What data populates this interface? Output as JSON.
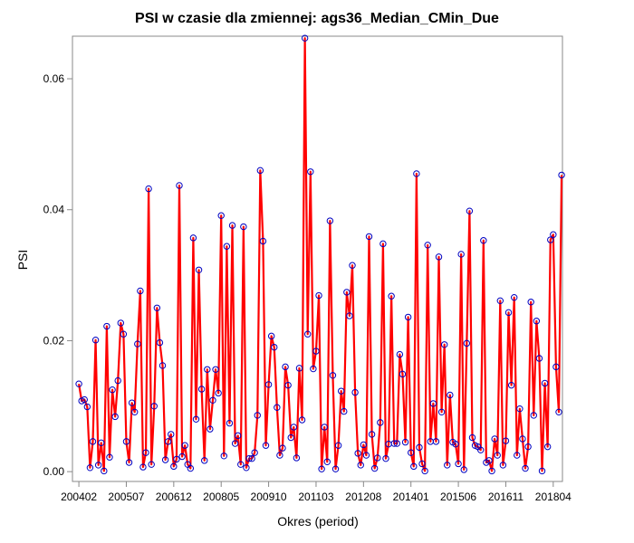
{
  "chart_data": {
    "type": "line",
    "title": "PSI w czasie dla zmiennej: ags36_Median_CMin_Due",
    "xlabel": "Okres (period)",
    "ylabel": "PSI",
    "x_tick_labels": [
      "200402",
      "200507",
      "200612",
      "200805",
      "200910",
      "201103",
      "201208",
      "201401",
      "201506",
      "201611",
      "201804"
    ],
    "y_tick_labels": [
      "0.00",
      "0.02",
      "0.04",
      "0.06"
    ],
    "yticks": [
      0,
      0.02,
      0.04,
      0.06
    ],
    "ylim": [
      -0.0015,
      0.0665
    ],
    "xlim": [
      -2.3,
      173.3
    ],
    "grid": false,
    "legend": "none",
    "colors": {
      "line": "#ff0000",
      "marker": "#0000c0",
      "axis": "#888888"
    },
    "series": [
      {
        "values": [
          0.0134,
          0.0108,
          0.011,
          0.0099,
          0.0006,
          0.0046,
          0.0201,
          0.001,
          0.0044,
          0.0001,
          0.0222,
          0.0022,
          0.0125,
          0.0084,
          0.0139,
          0.0227,
          0.021,
          0.0046,
          0.0014,
          0.0105,
          0.0091,
          0.0195,
          0.0276,
          0.0007,
          0.0029,
          0.0432,
          0.0011,
          0.01,
          0.025,
          0.0197,
          0.0162,
          0.0018,
          0.0046,
          0.0057,
          0.0008,
          0.0019,
          0.0437,
          0.0023,
          0.004,
          0.0011,
          0.0005,
          0.0357,
          0.008,
          0.0308,
          0.0126,
          0.0017,
          0.0156,
          0.0065,
          0.0109,
          0.0156,
          0.012,
          0.0391,
          0.0024,
          0.0344,
          0.0074,
          0.0376,
          0.0043,
          0.0055,
          0.0011,
          0.0374,
          0.0006,
          0.002,
          0.002,
          0.0029,
          0.0086,
          0.046,
          0.0352,
          0.004,
          0.0133,
          0.0207,
          0.019,
          0.0098,
          0.0025,
          0.0036,
          0.016,
          0.0132,
          0.0052,
          0.0068,
          0.0021,
          0.0158,
          0.0079,
          0.0662,
          0.021,
          0.0458,
          0.0157,
          0.0184,
          0.0269,
          0.0004,
          0.0068,
          0.0015,
          0.0383,
          0.0147,
          0.0004,
          0.004,
          0.0123,
          0.0092,
          0.0274,
          0.0238,
          0.0315,
          0.0121,
          0.0028,
          0.001,
          0.0041,
          0.0025,
          0.0359,
          0.0057,
          0.0005,
          0.0021,
          0.0075,
          0.0348,
          0.002,
          0.0042,
          0.0268,
          0.0043,
          0.0043,
          0.0179,
          0.0149,
          0.0045,
          0.0236,
          0.0029,
          0.0008,
          0.0455,
          0.0037,
          0.0012,
          0.0001,
          0.0346,
          0.0046,
          0.0104,
          0.0046,
          0.0328,
          0.0091,
          0.0194,
          0.001,
          0.0117,
          0.0045,
          0.0042,
          0.0012,
          0.0332,
          0.0003,
          0.0196,
          0.0398,
          0.0052,
          0.004,
          0.0038,
          0.0033,
          0.0353,
          0.0014,
          0.0017,
          0.0001,
          0.005,
          0.0025,
          0.0261,
          0.001,
          0.0047,
          0.0243,
          0.0132,
          0.0266,
          0.0025,
          0.0096,
          0.005,
          0.0005,
          0.0038,
          0.0259,
          0.0086,
          0.023,
          0.0173,
          0.0001,
          0.0135,
          0.0038,
          0.0354,
          0.0362,
          0.016,
          0.0091,
          0.0453
        ]
      }
    ]
  }
}
